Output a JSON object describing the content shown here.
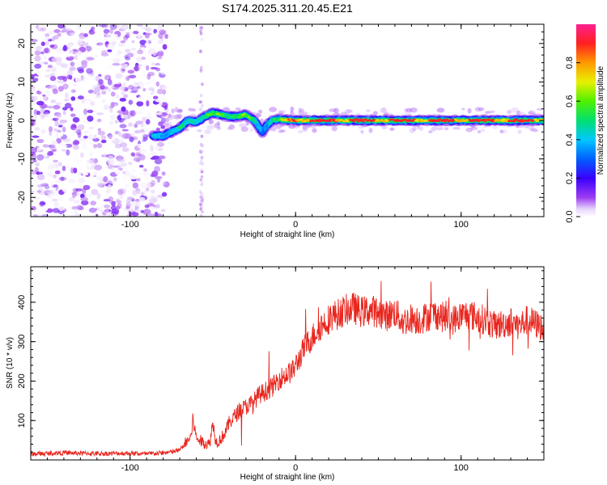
{
  "title": "S174.2025.311.20.45.E21",
  "chart_data": [
    {
      "type": "heatmap",
      "name": "spectrogram",
      "xlabel": "Height of straight line (km)",
      "ylabel": "Frequency (Hz)",
      "xlim": [
        -160,
        150
      ],
      "ylim": [
        -25,
        25
      ],
      "xticks": [
        -100,
        0,
        100
      ],
      "xtick_labels": [
        "-100",
        "0",
        "100"
      ],
      "yticks": [
        -20,
        -10,
        0,
        10,
        20
      ],
      "ytick_labels": [
        "-20",
        "-10",
        "0",
        "10",
        "20"
      ],
      "ridge": {
        "description": "dominant spectral line frequency vs height",
        "x": [
          -86,
          -80,
          -75,
          -70,
          -65,
          -60,
          -55,
          -50,
          -45,
          -40,
          -35,
          -30,
          -25,
          -20,
          -17,
          -14,
          -10,
          0,
          20,
          40,
          60,
          80,
          100,
          120,
          150
        ],
        "y": [
          -4,
          -4,
          -3,
          -2,
          0,
          -0.5,
          1,
          2,
          1.5,
          1,
          1,
          1.5,
          0,
          -3,
          -1,
          0,
          0.3,
          0,
          0,
          0,
          0,
          0,
          0,
          0,
          0
        ],
        "amplitude": [
          0.45,
          0.35,
          0.4,
          0.5,
          0.45,
          0.4,
          0.55,
          0.6,
          0.55,
          0.5,
          0.55,
          0.6,
          0.45,
          0.3,
          0.4,
          0.5,
          0.6,
          0.9,
          0.95,
          0.95,
          0.95,
          0.92,
          0.95,
          0.95,
          0.9
        ]
      },
      "noise_region": {
        "x_range": [
          -160,
          -78
        ],
        "y_range": [
          -25,
          25
        ],
        "amplitude": [
          0.0,
          0.15
        ]
      },
      "colorbar": {
        "label": "Normalized spectral amplitude",
        "range": [
          0,
          1
        ],
        "ticks": [
          0.0,
          0.2,
          0.4,
          0.6,
          0.8
        ],
        "tick_labels": [
          "0.0",
          "0.2",
          "0.4",
          "0.6",
          "0.8"
        ],
        "colormap": "rainbow (white/purple → blue → cyan → green → yellow → red → magenta)"
      }
    },
    {
      "type": "line",
      "name": "snr",
      "xlabel": "Height of straight line (km)",
      "ylabel": "SNR (10 * v/v)",
      "xlim": [
        -160,
        150
      ],
      "ylim": [
        0,
        490
      ],
      "xticks": [
        -100,
        0,
        100
      ],
      "xtick_labels": [
        "-100",
        "0",
        "100"
      ],
      "yticks": [
        100,
        200,
        300,
        400
      ],
      "ytick_labels": [
        "100",
        "200",
        "300",
        "400"
      ],
      "color": "#e8261e",
      "x": [
        -160,
        -140,
        -120,
        -100,
        -90,
        -80,
        -75,
        -70,
        -66,
        -63,
        -62,
        -60,
        -56,
        -52,
        -50,
        -48,
        -46,
        -44,
        -42,
        -40,
        -37,
        -34,
        -30,
        -26,
        -22,
        -18,
        -14,
        -10,
        -6,
        -2,
        2,
        6,
        10,
        14,
        18,
        22,
        26,
        30,
        35,
        40,
        45,
        50,
        55,
        60,
        65,
        70,
        75,
        80,
        85,
        90,
        95,
        100,
        105,
        110,
        115,
        120,
        125,
        130,
        135,
        140,
        145,
        150
      ],
      "y": [
        15,
        18,
        16,
        17,
        15,
        18,
        20,
        25,
        45,
        60,
        105,
        55,
        45,
        40,
        95,
        45,
        50,
        60,
        75,
        95,
        110,
        125,
        135,
        145,
        165,
        175,
        185,
        205,
        215,
        225,
        255,
        290,
        310,
        335,
        350,
        365,
        370,
        380,
        385,
        375,
        380,
        375,
        365,
        375,
        350,
        360,
        355,
        365,
        370,
        360,
        355,
        365,
        370,
        360,
        355,
        340,
        345,
        350,
        340,
        355,
        345,
        335
      ],
      "noise_amplitude": 30
    }
  ]
}
